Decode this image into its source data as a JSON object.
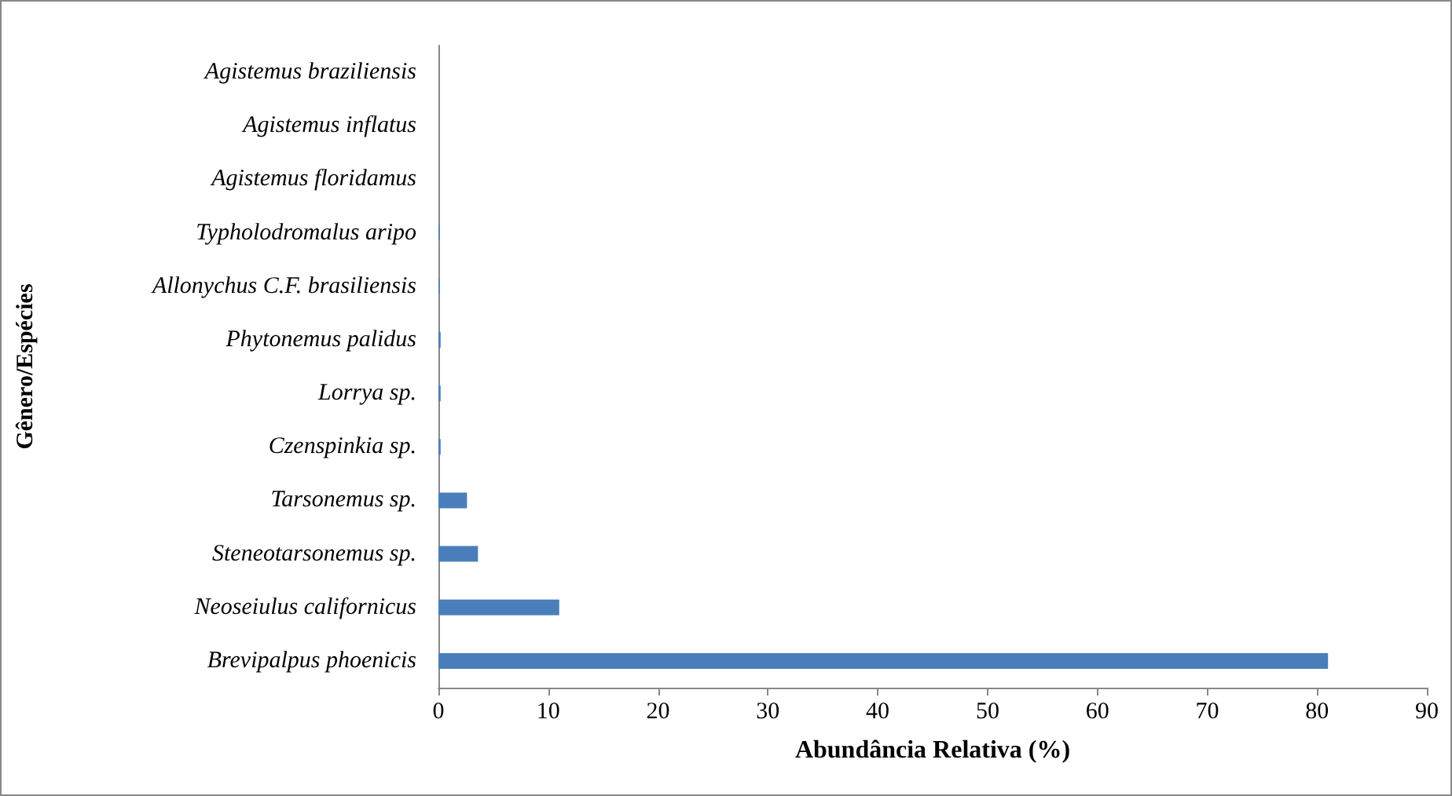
{
  "chart_data": {
    "type": "bar",
    "orientation": "horizontal",
    "xlabel": "Abundância Relativa (%)",
    "ylabel": "Gênero/Espécies",
    "categories": [
      "Agistemus braziliensis",
      "Agistemus inflatus",
      "Agistemus floridamus",
      "Typholodromalus aripo",
      "Allonychus C.F. brasiliensis",
      "Phytonemus palidus",
      "Lorrya sp.",
      "Czenspinkia sp.",
      "Tarsonemus sp.",
      "Steneotarsonemus sp.",
      "Neoseiulus californicus",
      "Brevipalpus phoenicis"
    ],
    "values": [
      0,
      0,
      0,
      0.1,
      0.1,
      0.2,
      0.2,
      0.2,
      2.6,
      3.6,
      11,
      81
    ],
    "color": "#4a7ebb",
    "xlim": [
      0,
      90
    ],
    "xticks": [
      0,
      10,
      20,
      30,
      40,
      50,
      60,
      70,
      80,
      90
    ],
    "grid": false
  }
}
